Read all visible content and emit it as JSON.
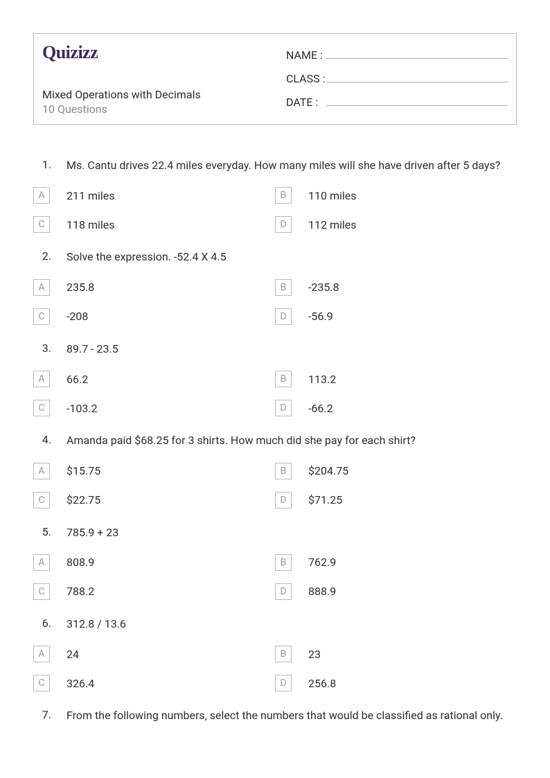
{
  "logo": "Quizizz",
  "quiz_title": "Mixed Operations with Decimals",
  "quiz_subtitle": "10 Questions",
  "fields": {
    "name_label": "NAME :",
    "class_label": "CLASS :",
    "date_label": "DATE   :"
  },
  "questions": [
    {
      "number": "1.",
      "text": "Ms. Cantu drives 22.4 miles everyday. How many miles will she have driven after 5 days?",
      "answers": {
        "A": "211 miles",
        "B": "110 miles",
        "C": "118 miles",
        "D": "112 miles"
      }
    },
    {
      "number": "2.",
      "text": "Solve the expression. -52.4 X 4.5",
      "answers": {
        "A": "235.8",
        "B": "-235.8",
        "C": "-208",
        "D": "-56.9"
      }
    },
    {
      "number": "3.",
      "text": "89.7 - 23.5",
      "answers": {
        "A": "66.2",
        "B": "113.2",
        "C": "-103.2",
        "D": "-66.2"
      }
    },
    {
      "number": "4.",
      "text": "Amanda paid $68.25 for 3 shirts. How much did she pay for each shirt?",
      "answers": {
        "A": "$15.75",
        "B": "$204.75",
        "C": "$22.75",
        "D": "$71.25"
      }
    },
    {
      "number": "5.",
      "text": "785.9 + 23",
      "answers": {
        "A": "808.9",
        "B": "762.9",
        "C": "788.2",
        "D": "888.9"
      }
    },
    {
      "number": "6.",
      "text": "312.8 / 13.6",
      "answers": {
        "A": "24",
        "B": "23",
        "C": "326.4",
        "D": "256.8"
      }
    },
    {
      "number": "7.",
      "text": "From the following numbers, select the numbers that would be classified as rational only.",
      "answers": null
    }
  ],
  "answer_labels": {
    "A": "A",
    "B": "B",
    "C": "C",
    "D": "D"
  }
}
